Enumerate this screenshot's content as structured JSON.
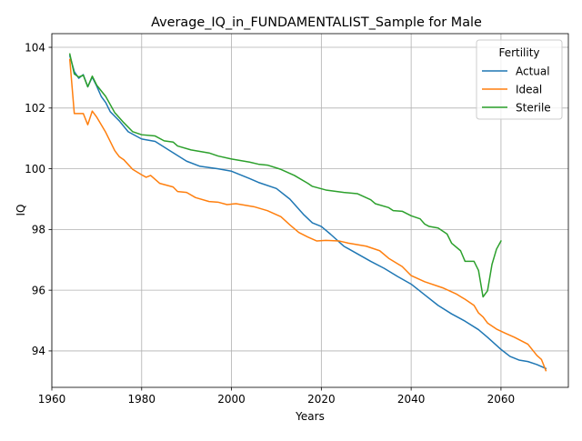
{
  "chart_data": {
    "type": "line",
    "title": "Average_IQ_in_FUNDAMENTALIST_Sample for Male",
    "xlabel": "Years",
    "ylabel": "IQ",
    "xlim": [
      1960,
      2075
    ],
    "ylim": [
      92.8,
      104.45
    ],
    "xticks": [
      1960,
      1980,
      2000,
      2020,
      2040,
      2060
    ],
    "yticks": [
      94,
      96,
      98,
      100,
      102,
      104
    ],
    "grid": true,
    "legend": {
      "title": "Fertility",
      "placement": "upper right"
    },
    "series": [
      {
        "name": "Actual",
        "color": "#1f77b4",
        "points": [
          [
            1964,
            103.72
          ],
          [
            1965,
            103.2
          ],
          [
            1966,
            102.98
          ],
          [
            1967,
            103.1
          ],
          [
            1968,
            102.7
          ],
          [
            1969,
            103.02
          ],
          [
            1970,
            102.72
          ],
          [
            1971,
            102.38
          ],
          [
            1972,
            102.18
          ],
          [
            1973,
            101.88
          ],
          [
            1975,
            101.58
          ],
          [
            1977,
            101.22
          ],
          [
            1980,
            100.98
          ],
          [
            1983,
            100.9
          ],
          [
            1986,
            100.62
          ],
          [
            1990,
            100.25
          ],
          [
            1993,
            100.08
          ],
          [
            1997,
            100.0
          ],
          [
            2000,
            99.92
          ],
          [
            2004,
            99.68
          ],
          [
            2006,
            99.55
          ],
          [
            2010,
            99.35
          ],
          [
            2013,
            99.0
          ],
          [
            2016,
            98.5
          ],
          [
            2018,
            98.22
          ],
          [
            2020,
            98.1
          ],
          [
            2022,
            97.85
          ],
          [
            2025,
            97.45
          ],
          [
            2028,
            97.2
          ],
          [
            2031,
            96.95
          ],
          [
            2034,
            96.72
          ],
          [
            2037,
            96.45
          ],
          [
            2040,
            96.2
          ],
          [
            2043,
            95.85
          ],
          [
            2046,
            95.5
          ],
          [
            2049,
            95.22
          ],
          [
            2052,
            94.98
          ],
          [
            2055,
            94.7
          ],
          [
            2057,
            94.45
          ],
          [
            2060,
            94.05
          ],
          [
            2062,
            93.82
          ],
          [
            2064,
            93.7
          ],
          [
            2066,
            93.65
          ],
          [
            2068,
            93.55
          ],
          [
            2070,
            93.42
          ]
        ]
      },
      {
        "name": "Ideal",
        "color": "#ff7f0e",
        "points": [
          [
            1964,
            103.6
          ],
          [
            1965,
            101.82
          ],
          [
            1967,
            101.82
          ],
          [
            1968,
            101.45
          ],
          [
            1969,
            101.9
          ],
          [
            1970,
            101.7
          ],
          [
            1972,
            101.2
          ],
          [
            1974,
            100.6
          ],
          [
            1975,
            100.4
          ],
          [
            1976,
            100.3
          ],
          [
            1978,
            99.98
          ],
          [
            1980,
            99.8
          ],
          [
            1981,
            99.72
          ],
          [
            1982,
            99.78
          ],
          [
            1984,
            99.52
          ],
          [
            1987,
            99.4
          ],
          [
            1988,
            99.25
          ],
          [
            1990,
            99.22
          ],
          [
            1992,
            99.05
          ],
          [
            1995,
            98.92
          ],
          [
            1997,
            98.9
          ],
          [
            1999,
            98.82
          ],
          [
            2001,
            98.85
          ],
          [
            2005,
            98.75
          ],
          [
            2008,
            98.62
          ],
          [
            2011,
            98.42
          ],
          [
            2013,
            98.15
          ],
          [
            2015,
            97.9
          ],
          [
            2017,
            97.75
          ],
          [
            2019,
            97.62
          ],
          [
            2021,
            97.64
          ],
          [
            2024,
            97.62
          ],
          [
            2026,
            97.55
          ],
          [
            2030,
            97.45
          ],
          [
            2033,
            97.3
          ],
          [
            2035,
            97.05
          ],
          [
            2038,
            96.78
          ],
          [
            2040,
            96.48
          ],
          [
            2043,
            96.28
          ],
          [
            2047,
            96.08
          ],
          [
            2050,
            95.88
          ],
          [
            2052,
            95.7
          ],
          [
            2054,
            95.5
          ],
          [
            2055,
            95.25
          ],
          [
            2056,
            95.12
          ],
          [
            2057,
            94.92
          ],
          [
            2059,
            94.72
          ],
          [
            2061,
            94.58
          ],
          [
            2063,
            94.45
          ],
          [
            2066,
            94.22
          ],
          [
            2068,
            93.85
          ],
          [
            2069,
            93.72
          ],
          [
            2070,
            93.35
          ]
        ]
      },
      {
        "name": "Sterile",
        "color": "#2ca02c",
        "points": [
          [
            1964,
            103.78
          ],
          [
            1965,
            103.12
          ],
          [
            1966,
            103.02
          ],
          [
            1967,
            103.08
          ],
          [
            1968,
            102.7
          ],
          [
            1969,
            103.05
          ],
          [
            1970,
            102.75
          ],
          [
            1972,
            102.38
          ],
          [
            1974,
            101.85
          ],
          [
            1976,
            101.52
          ],
          [
            1978,
            101.22
          ],
          [
            1980,
            101.12
          ],
          [
            1983,
            101.08
          ],
          [
            1985,
            100.92
          ],
          [
            1987,
            100.88
          ],
          [
            1988,
            100.75
          ],
          [
            1991,
            100.62
          ],
          [
            1995,
            100.52
          ],
          [
            1997,
            100.42
          ],
          [
            2000,
            100.32
          ],
          [
            2004,
            100.22
          ],
          [
            2006,
            100.15
          ],
          [
            2008,
            100.12
          ],
          [
            2011,
            99.98
          ],
          [
            2014,
            99.78
          ],
          [
            2017,
            99.52
          ],
          [
            2018,
            99.42
          ],
          [
            2021,
            99.3
          ],
          [
            2025,
            99.22
          ],
          [
            2028,
            99.18
          ],
          [
            2031,
            98.98
          ],
          [
            2032,
            98.85
          ],
          [
            2035,
            98.72
          ],
          [
            2036,
            98.62
          ],
          [
            2038,
            98.6
          ],
          [
            2040,
            98.45
          ],
          [
            2042,
            98.35
          ],
          [
            2043,
            98.18
          ],
          [
            2044,
            98.1
          ],
          [
            2046,
            98.05
          ],
          [
            2048,
            97.85
          ],
          [
            2049,
            97.55
          ],
          [
            2051,
            97.3
          ],
          [
            2052,
            96.95
          ],
          [
            2054,
            96.95
          ],
          [
            2055,
            96.65
          ],
          [
            2056,
            95.78
          ],
          [
            2057,
            95.98
          ],
          [
            2058,
            96.85
          ],
          [
            2059,
            97.35
          ],
          [
            2060,
            97.62
          ]
        ]
      }
    ]
  }
}
